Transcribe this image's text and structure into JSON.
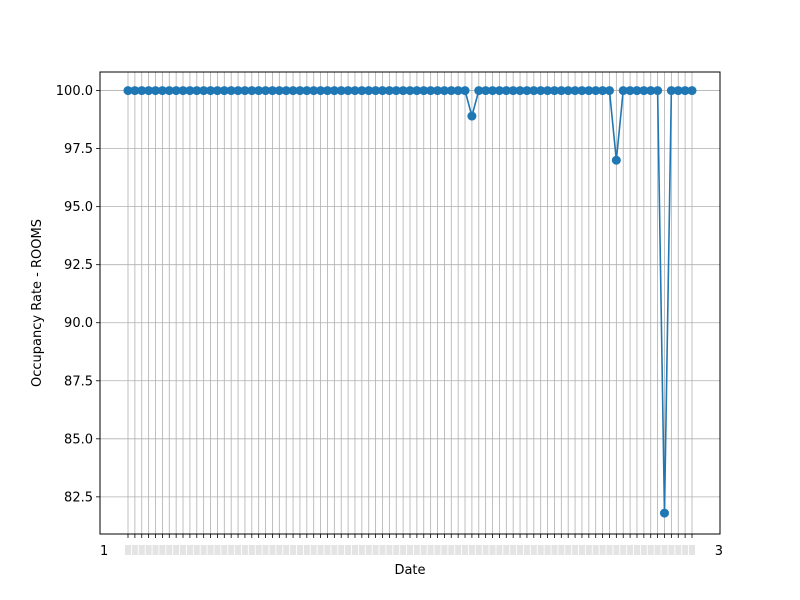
{
  "chart_data": {
    "type": "line",
    "title": "",
    "xlabel": "Date",
    "ylabel": "Occupancy Rate - ROOMS",
    "ylim": [
      80.9,
      100.8
    ],
    "yticks": [
      "82.5",
      "85.0",
      "87.5",
      "90.0",
      "92.5",
      "95.0",
      "97.5",
      "100.0"
    ],
    "grid": true,
    "legend": "none",
    "marker": "circle",
    "colors": {
      "series": "#1f77b4",
      "grid": "#b0b0b0",
      "axis": "#000000"
    },
    "series": [
      {
        "values": [
          100,
          100,
          100,
          100,
          100,
          100,
          100,
          100,
          100,
          100,
          100,
          100,
          100,
          100,
          100,
          100,
          100,
          100,
          100,
          100,
          100,
          100,
          100,
          100,
          100,
          100,
          100,
          100,
          100,
          100,
          100,
          100,
          100,
          100,
          100,
          100,
          100,
          100,
          100,
          100,
          100,
          100,
          100,
          100,
          100,
          100,
          100,
          100,
          100,
          100,
          98.9,
          100,
          100,
          100,
          100,
          100,
          100,
          100,
          100,
          100,
          100,
          100,
          100,
          100,
          100,
          100,
          100,
          100,
          100,
          100,
          100,
          97.0,
          100,
          100,
          100,
          100,
          100,
          100,
          81.8,
          100,
          100,
          100,
          100
        ]
      }
    ],
    "x_tick_first": "1",
    "x_tick_last": "3"
  }
}
